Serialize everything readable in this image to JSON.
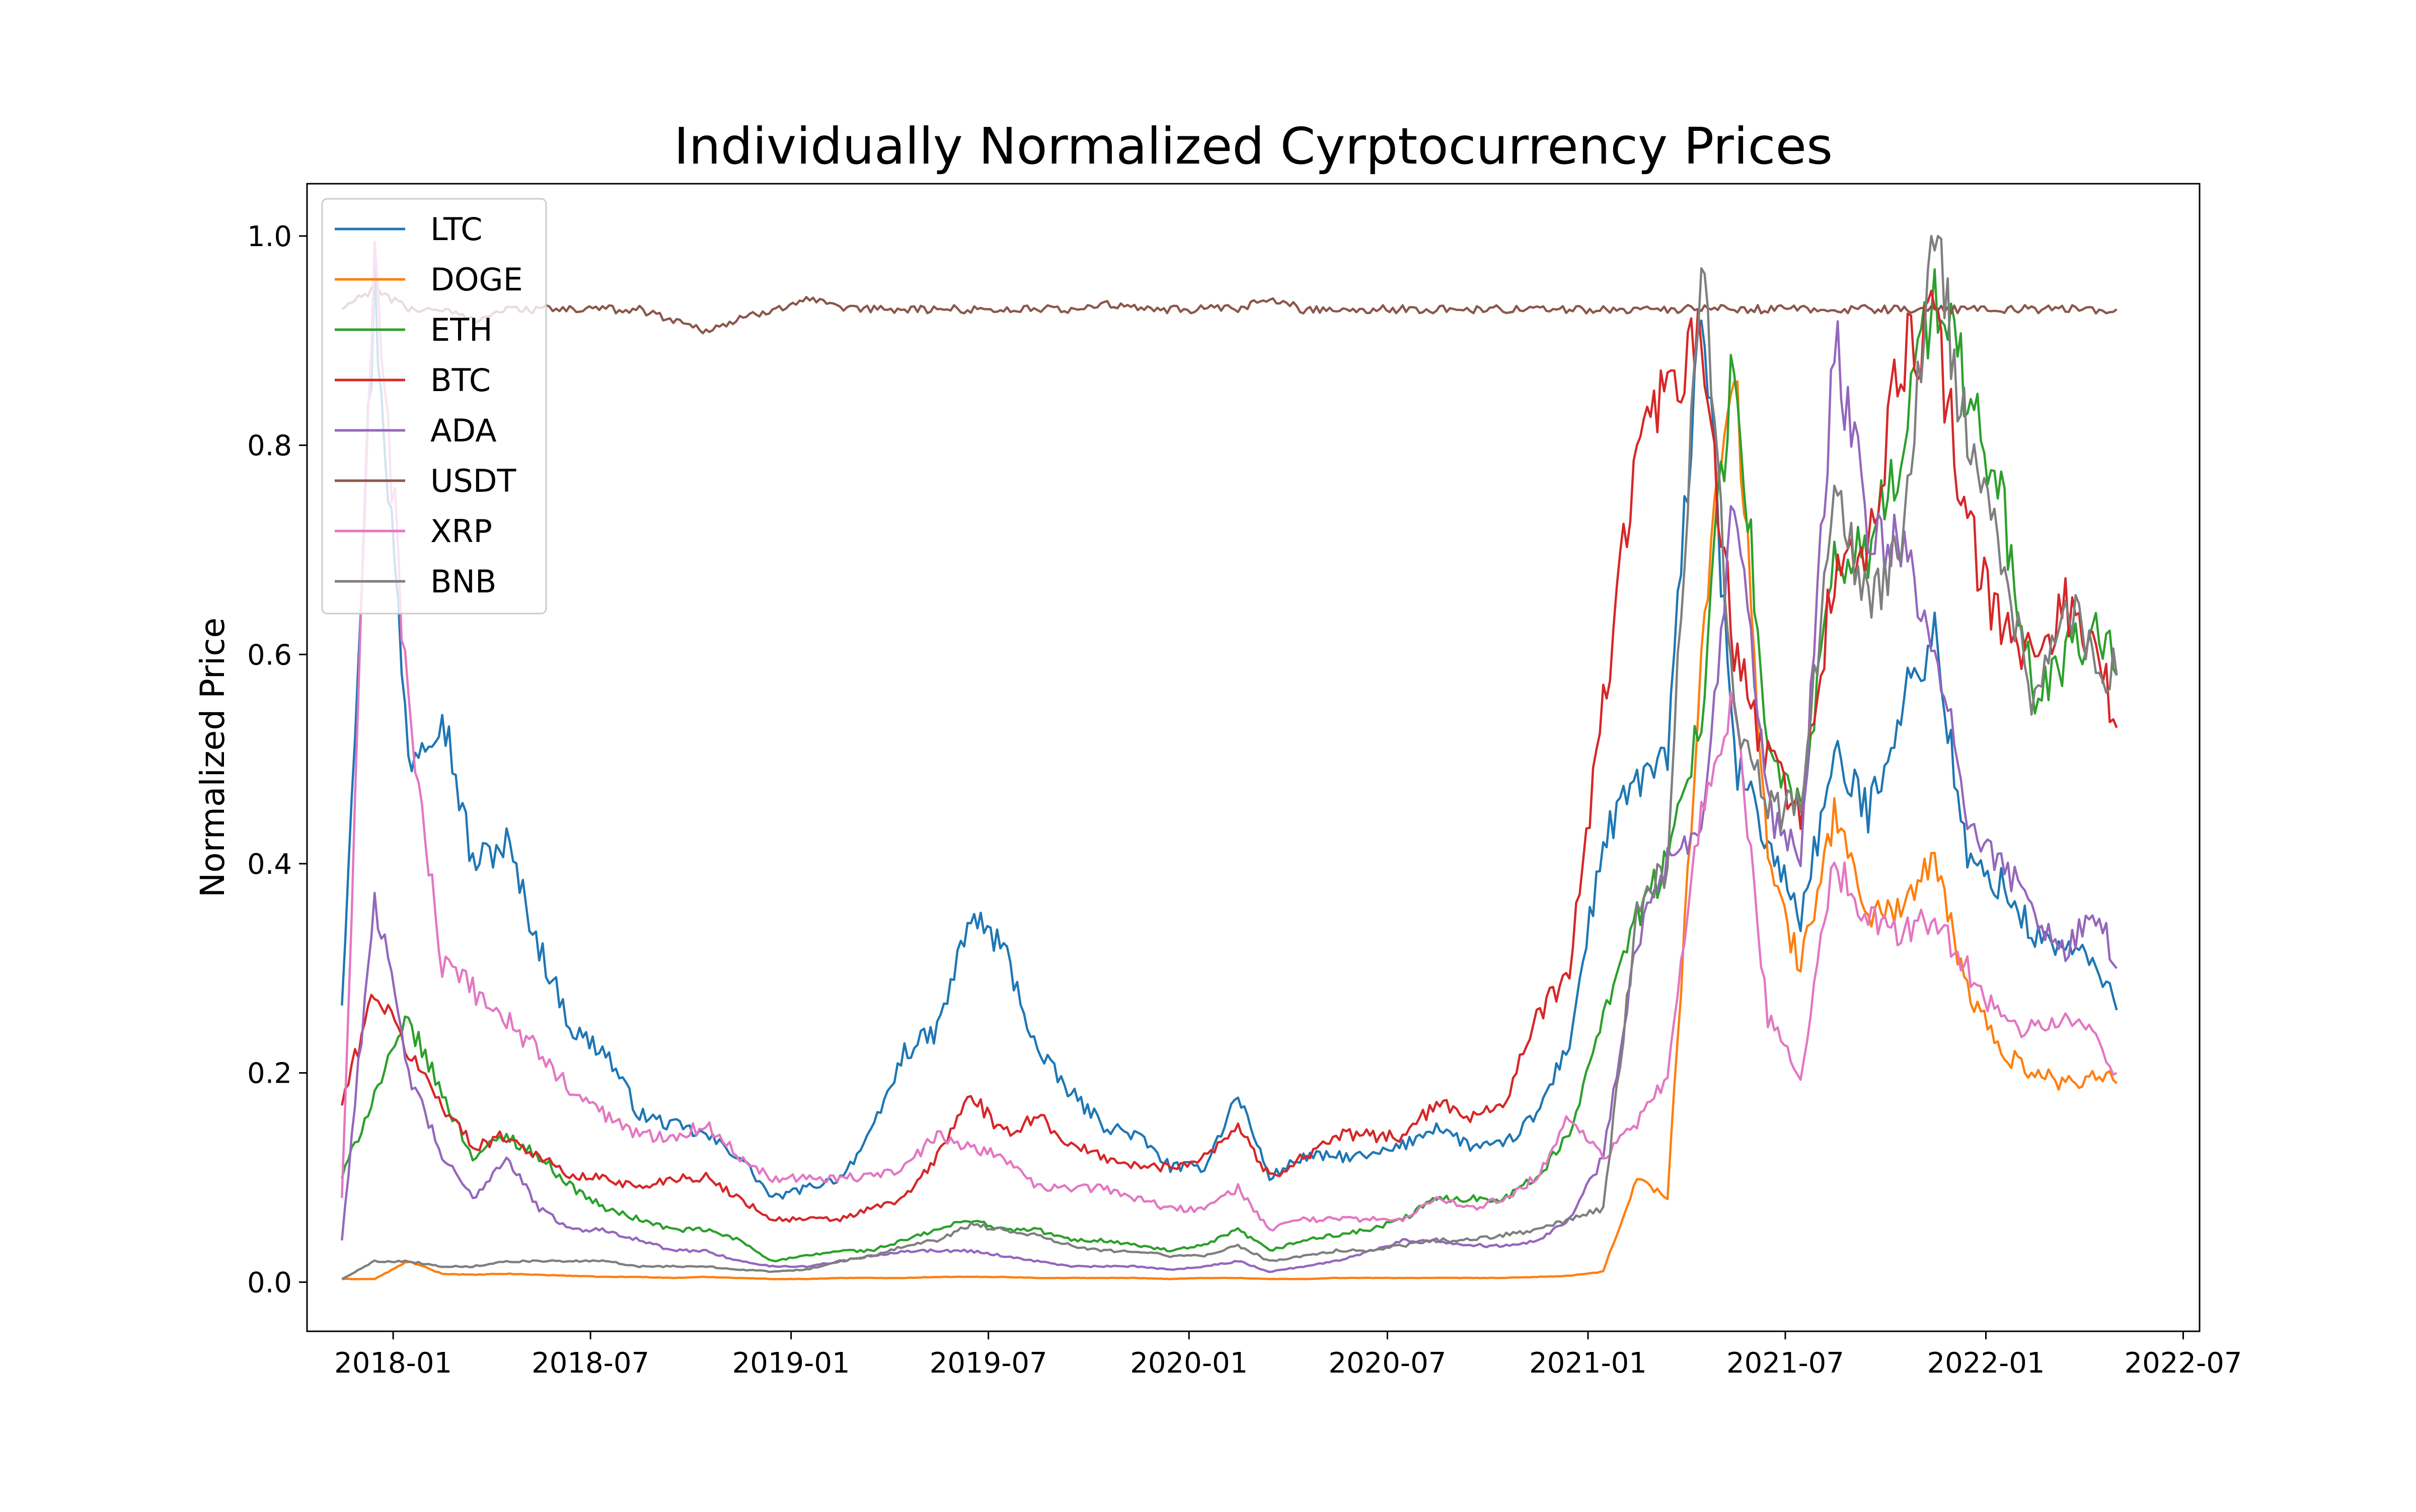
{
  "chart_data": {
    "type": "line",
    "title": "Individually Normalized Cyrptocurrency Prices",
    "xlabel": "",
    "ylabel": "Normalized Price",
    "xlim": [
      "2017-10-14",
      "2022-07-16"
    ],
    "ylim": [
      -0.047,
      1.05
    ],
    "x_ticks": [
      "2018-01",
      "2018-07",
      "2019-01",
      "2019-07",
      "2020-01",
      "2020-07",
      "2021-01",
      "2021-07",
      "2022-01",
      "2022-07"
    ],
    "y_ticks": [
      "0.0",
      "0.2",
      "0.4",
      "0.6",
      "0.8",
      "1.0"
    ],
    "grid": false,
    "legend_position": "top-left",
    "dates": [
      "2017-11-15",
      "2017-12-15",
      "2018-01-15",
      "2018-02-15",
      "2018-03-15",
      "2018-04-15",
      "2018-05-15",
      "2018-06-15",
      "2018-07-15",
      "2018-08-15",
      "2018-09-15",
      "2018-10-15",
      "2018-11-15",
      "2018-12-15",
      "2019-01-15",
      "2019-02-15",
      "2019-03-15",
      "2019-04-15",
      "2019-05-15",
      "2019-06-15",
      "2019-07-15",
      "2019-08-15",
      "2019-09-15",
      "2019-10-15",
      "2019-11-15",
      "2019-12-15",
      "2020-01-15",
      "2020-02-15",
      "2020-03-15",
      "2020-04-15",
      "2020-05-15",
      "2020-06-15",
      "2020-07-15",
      "2020-08-15",
      "2020-09-15",
      "2020-10-15",
      "2020-11-15",
      "2020-12-15",
      "2021-01-15",
      "2021-02-15",
      "2021-03-15",
      "2021-04-15",
      "2021-05-15",
      "2021-06-15",
      "2021-07-15",
      "2021-08-15",
      "2021-09-15",
      "2021-10-15",
      "2021-11-15",
      "2021-12-15",
      "2022-01-15",
      "2022-02-15",
      "2022-03-15",
      "2022-04-15",
      "2022-05-01"
    ],
    "series": [
      {
        "name": "LTC",
        "color": "#1f77b4",
        "values": [
          0.27,
          0.95,
          0.5,
          0.55,
          0.4,
          0.42,
          0.32,
          0.24,
          0.22,
          0.16,
          0.15,
          0.14,
          0.12,
          0.08,
          0.09,
          0.1,
          0.14,
          0.22,
          0.24,
          0.35,
          0.32,
          0.22,
          0.18,
          0.15,
          0.14,
          0.11,
          0.11,
          0.18,
          0.1,
          0.12,
          0.12,
          0.12,
          0.13,
          0.15,
          0.13,
          0.13,
          0.16,
          0.23,
          0.42,
          0.48,
          0.5,
          0.95,
          0.5,
          0.42,
          0.35,
          0.5,
          0.45,
          0.55,
          0.62,
          0.4,
          0.38,
          0.33,
          0.32,
          0.3,
          0.26
        ]
      },
      {
        "name": "DOGE",
        "color": "#ff7f0e",
        "values": [
          0.003,
          0.003,
          0.02,
          0.008,
          0.007,
          0.008,
          0.007,
          0.006,
          0.005,
          0.005,
          0.004,
          0.005,
          0.004,
          0.003,
          0.003,
          0.004,
          0.004,
          0.004,
          0.005,
          0.005,
          0.005,
          0.004,
          0.004,
          0.004,
          0.004,
          0.003,
          0.004,
          0.004,
          0.003,
          0.003,
          0.004,
          0.004,
          0.004,
          0.004,
          0.004,
          0.004,
          0.005,
          0.006,
          0.01,
          0.1,
          0.08,
          0.6,
          0.9,
          0.4,
          0.3,
          0.45,
          0.35,
          0.36,
          0.4,
          0.28,
          0.22,
          0.2,
          0.19,
          0.2,
          0.19
        ]
      },
      {
        "name": "ETH",
        "color": "#2ca02c",
        "values": [
          0.1,
          0.18,
          0.25,
          0.18,
          0.12,
          0.14,
          0.12,
          0.09,
          0.07,
          0.06,
          0.05,
          0.05,
          0.04,
          0.02,
          0.025,
          0.03,
          0.03,
          0.04,
          0.05,
          0.06,
          0.05,
          0.05,
          0.04,
          0.04,
          0.035,
          0.03,
          0.035,
          0.05,
          0.03,
          0.04,
          0.045,
          0.05,
          0.06,
          0.08,
          0.08,
          0.08,
          0.1,
          0.14,
          0.26,
          0.35,
          0.4,
          0.55,
          0.9,
          0.5,
          0.45,
          0.68,
          0.7,
          0.8,
          0.95,
          0.85,
          0.75,
          0.55,
          0.6,
          0.62,
          0.58
        ]
      },
      {
        "name": "BTC",
        "color": "#d62728",
        "values": [
          0.17,
          0.28,
          0.22,
          0.17,
          0.13,
          0.14,
          0.12,
          0.1,
          0.1,
          0.09,
          0.1,
          0.1,
          0.08,
          0.06,
          0.06,
          0.06,
          0.07,
          0.08,
          0.12,
          0.18,
          0.14,
          0.16,
          0.13,
          0.12,
          0.11,
          0.11,
          0.12,
          0.15,
          0.1,
          0.12,
          0.14,
          0.14,
          0.14,
          0.17,
          0.16,
          0.17,
          0.25,
          0.3,
          0.55,
          0.8,
          0.85,
          0.9,
          0.6,
          0.5,
          0.45,
          0.68,
          0.7,
          0.88,
          0.92,
          0.72,
          0.62,
          0.6,
          0.65,
          0.6,
          0.53
        ]
      },
      {
        "name": "ADA",
        "color": "#9467bd",
        "values": [
          0.04,
          0.37,
          0.2,
          0.12,
          0.08,
          0.12,
          0.07,
          0.05,
          0.05,
          0.04,
          0.03,
          0.03,
          0.02,
          0.015,
          0.015,
          0.02,
          0.025,
          0.03,
          0.03,
          0.03,
          0.025,
          0.02,
          0.015,
          0.015,
          0.015,
          0.012,
          0.015,
          0.02,
          0.01,
          0.015,
          0.02,
          0.03,
          0.04,
          0.04,
          0.035,
          0.035,
          0.04,
          0.06,
          0.12,
          0.33,
          0.4,
          0.42,
          0.75,
          0.45,
          0.4,
          0.9,
          0.72,
          0.7,
          0.6,
          0.45,
          0.4,
          0.35,
          0.32,
          0.35,
          0.3
        ]
      },
      {
        "name": "USDT",
        "color": "#8c564b",
        "values": [
          0.93,
          0.95,
          0.93,
          0.93,
          0.92,
          0.93,
          0.93,
          0.93,
          0.93,
          0.93,
          0.92,
          0.91,
          0.92,
          0.93,
          0.94,
          0.93,
          0.93,
          0.93,
          0.93,
          0.93,
          0.93,
          0.93,
          0.93,
          0.935,
          0.93,
          0.93,
          0.93,
          0.93,
          0.94,
          0.93,
          0.93,
          0.93,
          0.93,
          0.93,
          0.93,
          0.93,
          0.93,
          0.93,
          0.93,
          0.93,
          0.93,
          0.93,
          0.93,
          0.93,
          0.93,
          0.93,
          0.93,
          0.93,
          0.93,
          0.93,
          0.93,
          0.93,
          0.93,
          0.93,
          0.93
        ]
      },
      {
        "name": "XRP",
        "color": "#e377c2",
        "values": [
          0.08,
          1.0,
          0.55,
          0.3,
          0.28,
          0.25,
          0.22,
          0.18,
          0.16,
          0.14,
          0.14,
          0.15,
          0.12,
          0.1,
          0.1,
          0.1,
          0.1,
          0.11,
          0.14,
          0.13,
          0.12,
          0.09,
          0.09,
          0.09,
          0.08,
          0.07,
          0.07,
          0.09,
          0.05,
          0.06,
          0.06,
          0.06,
          0.06,
          0.08,
          0.07,
          0.08,
          0.1,
          0.16,
          0.12,
          0.15,
          0.2,
          0.45,
          0.55,
          0.25,
          0.2,
          0.4,
          0.35,
          0.33,
          0.35,
          0.3,
          0.25,
          0.24,
          0.26,
          0.23,
          0.2
        ]
      },
      {
        "name": "BNB",
        "color": "#7f7f7f",
        "values": [
          0.003,
          0.02,
          0.02,
          0.015,
          0.015,
          0.02,
          0.02,
          0.02,
          0.02,
          0.015,
          0.015,
          0.015,
          0.012,
          0.01,
          0.012,
          0.02,
          0.025,
          0.035,
          0.04,
          0.055,
          0.05,
          0.045,
          0.035,
          0.03,
          0.03,
          0.025,
          0.025,
          0.035,
          0.02,
          0.025,
          0.03,
          0.03,
          0.035,
          0.04,
          0.04,
          0.045,
          0.05,
          0.06,
          0.07,
          0.35,
          0.4,
          1.0,
          0.55,
          0.45,
          0.45,
          0.75,
          0.65,
          0.7,
          1.0,
          0.8,
          0.7,
          0.55,
          0.65,
          0.58,
          0.58
        ]
      }
    ]
  }
}
